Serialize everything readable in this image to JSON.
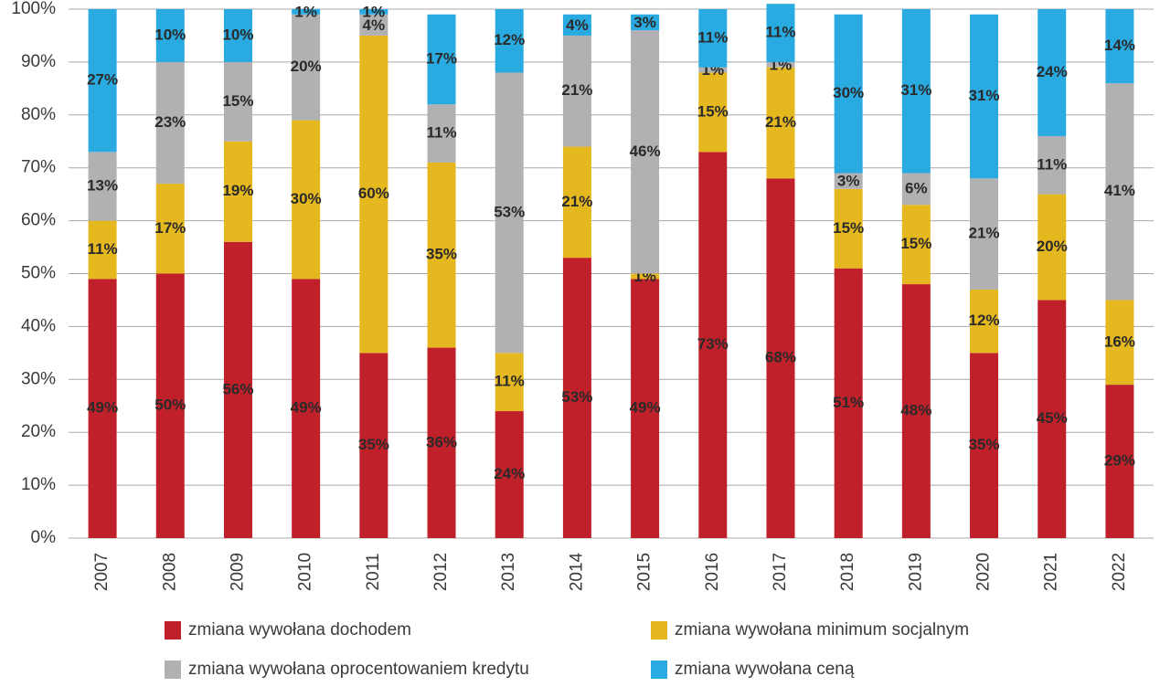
{
  "chart_data": {
    "type": "stacked_bar",
    "categories": [
      "2007",
      "2008",
      "2009",
      "2010",
      "2011",
      "2012",
      "2013",
      "2014",
      "2015",
      "2016",
      "2017",
      "2018",
      "2019",
      "2020",
      "2021",
      "2022"
    ],
    "series": [
      {
        "name": "zmiana wywołana dochodem",
        "color": "#c0202a",
        "values": [
          49,
          50,
          56,
          49,
          35,
          36,
          24,
          53,
          49,
          73,
          68,
          51,
          48,
          35,
          45,
          29
        ],
        "value_labels": [
          "49%",
          "50%",
          "56%",
          "49%",
          "35%",
          "36%",
          "24%",
          "53%",
          "49%",
          "73%",
          "68%",
          "51%",
          "48%",
          "35%",
          "45%",
          "29%"
        ]
      },
      {
        "name": "zmiana wywołana minimum socjalnym",
        "color": "#e6b820",
        "values": [
          11,
          17,
          19,
          30,
          60,
          35,
          11,
          21,
          1,
          15,
          21,
          15,
          15,
          12,
          20,
          16
        ],
        "value_labels": [
          "11%",
          "17%",
          "19%",
          "30%",
          "60%",
          "35%",
          "11%",
          "21%",
          "1%",
          "15%",
          "21%",
          "15%",
          "15%",
          "12%",
          "20%",
          "16%"
        ]
      },
      {
        "name": "zmiana wywołana oprocentowaniem kredytu",
        "color": "#b1b1b3",
        "values": [
          13,
          23,
          15,
          20,
          4,
          11,
          53,
          21,
          46,
          1,
          1,
          3,
          6,
          21,
          11,
          41
        ],
        "value_labels": [
          "13%",
          "23%",
          "15%",
          "20%",
          "4%",
          "11%",
          "53%",
          "21%",
          "46%",
          "1%",
          "1%",
          "3%",
          "6%",
          "21%",
          "11%",
          "41%"
        ]
      },
      {
        "name": "zmiana wywołana ceną",
        "color": "#29aae1",
        "values": [
          27,
          10,
          10,
          1,
          1,
          17,
          12,
          4,
          3,
          11,
          11,
          30,
          31,
          31,
          24,
          14
        ],
        "value_labels": [
          "27%",
          "10%",
          "10%",
          "1%",
          "1%",
          "17%",
          "12%",
          "4%",
          "3%",
          "11%",
          "11%",
          "30%",
          "31%",
          "31%",
          "24%",
          "14%"
        ]
      }
    ],
    "ylim": [
      0,
      100
    ],
    "yticks": [
      {
        "value": 0,
        "label": "0%"
      },
      {
        "value": 10,
        "label": "10%"
      },
      {
        "value": 20,
        "label": "20%"
      },
      {
        "value": 30,
        "label": "30%"
      },
      {
        "value": 40,
        "label": "40%"
      },
      {
        "value": 50,
        "label": "50%"
      },
      {
        "value": 60,
        "label": "60%"
      },
      {
        "value": 70,
        "label": "70%"
      },
      {
        "value": 80,
        "label": "80%"
      },
      {
        "value": 90,
        "label": "90%"
      },
      {
        "value": 100,
        "label": "100%"
      }
    ],
    "grid": true,
    "legend": "bottom"
  }
}
